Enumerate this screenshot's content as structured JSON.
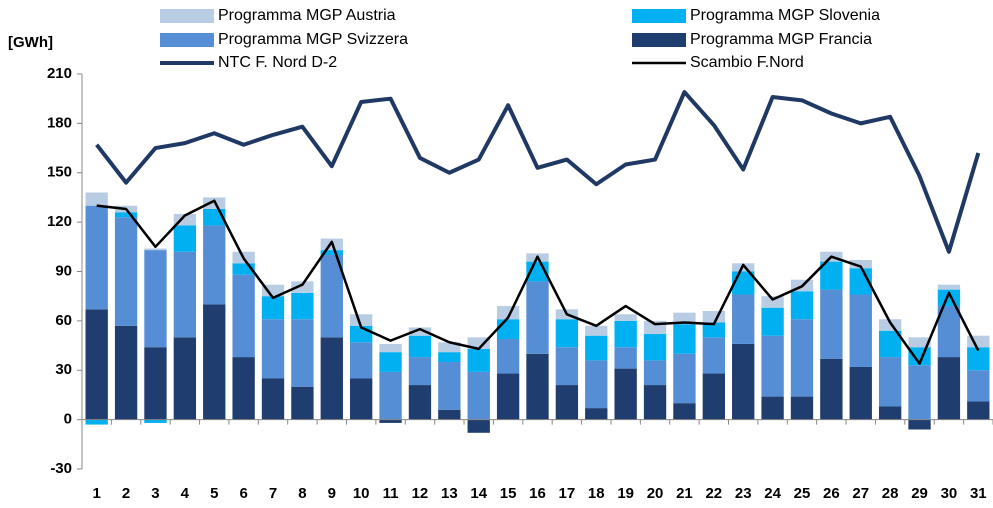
{
  "chart_data": {
    "type": "bar",
    "stacked": true,
    "unit_label": "[GWh]",
    "categories": [
      "1",
      "2",
      "3",
      "4",
      "5",
      "6",
      "7",
      "8",
      "9",
      "10",
      "11",
      "12",
      "13",
      "14",
      "15",
      "16",
      "17",
      "18",
      "19",
      "20",
      "21",
      "22",
      "23",
      "24",
      "25",
      "26",
      "27",
      "28",
      "29",
      "30",
      "31"
    ],
    "ylim": [
      -30,
      210
    ],
    "yticks": [
      -30,
      0,
      30,
      60,
      90,
      120,
      150,
      180,
      210
    ],
    "series": [
      {
        "name": "Programma MGP Austria",
        "type": "bar",
        "color": "#b8cce4",
        "values": [
          8,
          4,
          1,
          7,
          7,
          7,
          7,
          7,
          7,
          7,
          5,
          5,
          6,
          7,
          8,
          5,
          6,
          6,
          4,
          8,
          7,
          7,
          5,
          7,
          7,
          6,
          5,
          7,
          6,
          3,
          7
        ]
      },
      {
        "name": "Programma MGP Slovenia",
        "type": "bar",
        "color": "#00b0f0",
        "values": [
          -3,
          3,
          -2,
          16,
          10,
          7,
          14,
          16,
          3,
          10,
          12,
          13,
          6,
          14,
          12,
          12,
          17,
          15,
          16,
          16,
          18,
          9,
          14,
          17,
          17,
          17,
          16,
          16,
          11,
          10,
          14
        ]
      },
      {
        "name": "Programma MGP Svizzera",
        "type": "bar",
        "color": "#558ed5",
        "values": [
          63,
          66,
          59,
          52,
          48,
          50,
          36,
          41,
          50,
          22,
          29,
          17,
          29,
          29,
          21,
          44,
          23,
          29,
          13,
          15,
          30,
          22,
          30,
          37,
          47,
          42,
          44,
          30,
          33,
          31,
          19
        ]
      },
      {
        "name": "Programma MGP Francia",
        "type": "bar",
        "color": "#1f3d6e",
        "values": [
          67,
          57,
          44,
          50,
          70,
          38,
          25,
          20,
          50,
          25,
          -2,
          21,
          6,
          -8,
          28,
          40,
          21,
          7,
          31,
          21,
          10,
          28,
          46,
          14,
          14,
          37,
          32,
          8,
          -6,
          38,
          11
        ]
      },
      {
        "name": "NTC F. Nord D-2",
        "type": "line",
        "color": "#1f3864",
        "values": [
          167,
          144,
          165,
          168,
          174,
          167,
          173,
          178,
          154,
          193,
          195,
          159,
          150,
          158,
          191,
          153,
          158,
          143,
          155,
          158,
          199,
          179,
          152,
          196,
          194,
          186,
          180,
          184,
          148,
          102,
          162
        ]
      },
      {
        "name": "Scambio F.Nord",
        "type": "line",
        "color": "#000000",
        "values": [
          130,
          128,
          105,
          124,
          133,
          98,
          74,
          82,
          108,
          56,
          48,
          55,
          47,
          43,
          62,
          99,
          64,
          57,
          69,
          58,
          59,
          58,
          94,
          73,
          81,
          99,
          93,
          59,
          34,
          77,
          42
        ]
      }
    ]
  }
}
